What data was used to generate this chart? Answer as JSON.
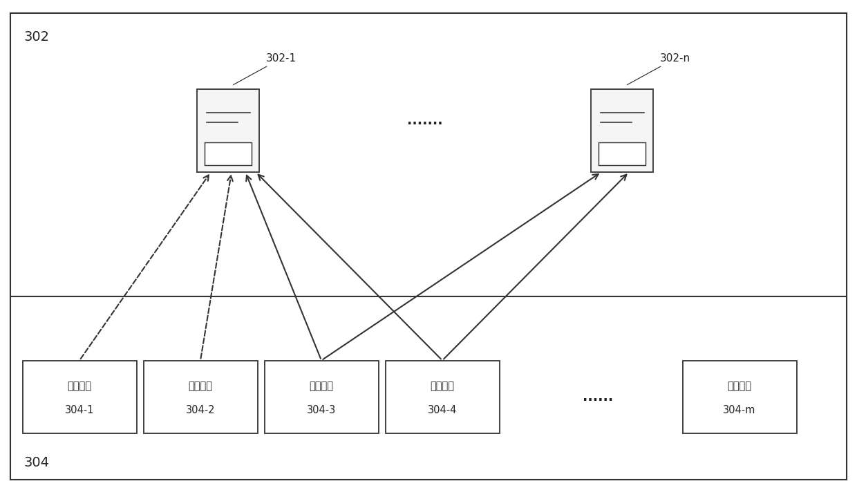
{
  "bg_color": "#ffffff",
  "border_color": "#333333",
  "box_color": "#ffffff",
  "text_color": "#222222",
  "fig_width": 12.4,
  "fig_height": 7.09,
  "top_region_label": "302",
  "bottom_region_label": "304",
  "dots_text": ".......",
  "server_node_1_label": "302-1",
  "server_node_n_label": "302-n",
  "service_boxes": [
    {
      "label": "服务进程\n304-1",
      "id": "304-1"
    },
    {
      "label": "服务进程\n304-2",
      "id": "304-2"
    },
    {
      "label": "服务进程\n304-3",
      "id": "304-3"
    },
    {
      "label": "服务进程\n304-4",
      "id": "304-4"
    },
    {
      "label": "服务进程\n304-m",
      "id": "304-m"
    }
  ]
}
